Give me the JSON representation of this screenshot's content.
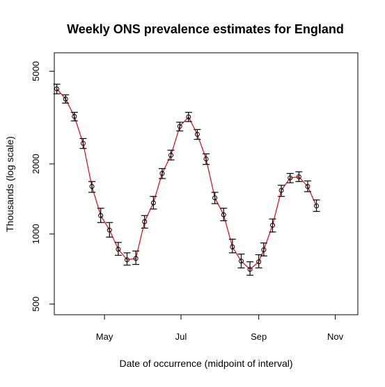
{
  "chart_data": {
    "type": "scatter",
    "title": "Weekly ONS prevalence estimates for England",
    "xlabel": "Date of occurrence (midpoint of interval)",
    "ylabel": "Thousands (log scale)",
    "y_scale": "log",
    "ylim": [
      450,
      6000
    ],
    "xlim": [
      "2022-03-22",
      "2022-11-19"
    ],
    "x_ticks": [
      {
        "date": "2022-05-01",
        "label": "May"
      },
      {
        "date": "2022-07-01",
        "label": "Jul"
      },
      {
        "date": "2022-09-01",
        "label": "Sep"
      },
      {
        "date": "2022-11-01",
        "label": "Nov"
      }
    ],
    "y_ticks": [
      {
        "value": 500,
        "label": "500"
      },
      {
        "value": 1000,
        "label": "1000"
      },
      {
        "value": 2000,
        "label": "2000"
      },
      {
        "value": 5000,
        "label": "5000"
      }
    ],
    "grid": false,
    "colors": {
      "line": "#e8000b",
      "points": "#000000",
      "error_bars": "#000000"
    },
    "series": [
      {
        "points": [
          {
            "x": "2022-03-24",
            "y": 4200,
            "low": 4000,
            "high": 4400
          },
          {
            "x": "2022-03-31",
            "y": 3800,
            "low": 3650,
            "high": 3960
          },
          {
            "x": "2022-04-07",
            "y": 3200,
            "low": 3060,
            "high": 3330
          },
          {
            "x": "2022-04-14",
            "y": 2450,
            "low": 2330,
            "high": 2570
          },
          {
            "x": "2022-04-21",
            "y": 1600,
            "low": 1510,
            "high": 1680
          },
          {
            "x": "2022-04-28",
            "y": 1200,
            "low": 1120,
            "high": 1290
          },
          {
            "x": "2022-05-05",
            "y": 1040,
            "low": 970,
            "high": 1120
          },
          {
            "x": "2022-05-12",
            "y": 860,
            "low": 810,
            "high": 920
          },
          {
            "x": "2022-05-19",
            "y": 775,
            "low": 735,
            "high": 830
          },
          {
            "x": "2022-05-26",
            "y": 785,
            "low": 740,
            "high": 845
          },
          {
            "x": "2022-06-02",
            "y": 1130,
            "low": 1060,
            "high": 1200
          },
          {
            "x": "2022-06-09",
            "y": 1360,
            "low": 1280,
            "high": 1450
          },
          {
            "x": "2022-06-16",
            "y": 1820,
            "low": 1730,
            "high": 1910
          },
          {
            "x": "2022-06-23",
            "y": 2180,
            "low": 2080,
            "high": 2290
          },
          {
            "x": "2022-06-30",
            "y": 2900,
            "low": 2770,
            "high": 3020
          },
          {
            "x": "2022-07-07",
            "y": 3180,
            "low": 3040,
            "high": 3330
          },
          {
            "x": "2022-07-14",
            "y": 2680,
            "low": 2550,
            "high": 2810
          },
          {
            "x": "2022-07-21",
            "y": 2100,
            "low": 1990,
            "high": 2210
          },
          {
            "x": "2022-07-28",
            "y": 1430,
            "low": 1350,
            "high": 1510
          },
          {
            "x": "2022-08-04",
            "y": 1210,
            "low": 1140,
            "high": 1290
          },
          {
            "x": "2022-08-11",
            "y": 880,
            "low": 830,
            "high": 950
          },
          {
            "x": "2022-08-18",
            "y": 765,
            "low": 715,
            "high": 820
          },
          {
            "x": "2022-08-25",
            "y": 705,
            "low": 665,
            "high": 760
          },
          {
            "x": "2022-09-01",
            "y": 760,
            "low": 715,
            "high": 815
          },
          {
            "x": "2022-09-05",
            "y": 855,
            "low": 805,
            "high": 915
          },
          {
            "x": "2022-09-12",
            "y": 1090,
            "low": 1020,
            "high": 1160
          },
          {
            "x": "2022-09-19",
            "y": 1540,
            "low": 1450,
            "high": 1620
          },
          {
            "x": "2022-09-26",
            "y": 1740,
            "low": 1660,
            "high": 1820
          },
          {
            "x": "2022-10-03",
            "y": 1760,
            "low": 1680,
            "high": 1850
          },
          {
            "x": "2022-10-10",
            "y": 1600,
            "low": 1520,
            "high": 1690
          },
          {
            "x": "2022-10-17",
            "y": 1320,
            "low": 1250,
            "high": 1400
          }
        ]
      }
    ]
  }
}
